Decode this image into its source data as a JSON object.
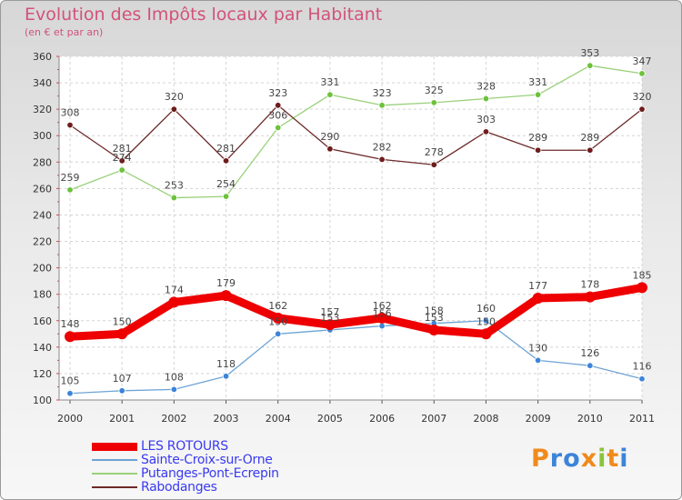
{
  "title": "Evolution des Impôts locaux par Habitant",
  "subtitle": "(en € et par an)",
  "logo": {
    "letters": [
      "P",
      "r",
      "o",
      "x",
      "i",
      "t",
      "i"
    ],
    "colors": [
      "#f08a1c",
      "#3c84d8",
      "#3c84d8",
      "#f08a1c",
      "#8ac43a",
      "#f08a1c",
      "#3c84d8"
    ]
  },
  "chart_data": {
    "type": "line",
    "title": "Evolution des Impôts locaux par Habitant",
    "subtitle": "(en € et par an)",
    "x": [
      "2000",
      "2001",
      "2002",
      "2003",
      "2004",
      "2005",
      "2006",
      "2007",
      "2008",
      "2009",
      "2010",
      "2011"
    ],
    "ylim": [
      100,
      360
    ],
    "yticks": [
      100,
      120,
      140,
      160,
      180,
      200,
      220,
      240,
      260,
      280,
      300,
      320,
      340,
      360
    ],
    "grid": true,
    "legend_position": "bottom-left",
    "series": [
      {
        "name": "LES ROTOURS",
        "color": "#ee0000",
        "point_color": "#ee0000",
        "width": "thick",
        "values": [
          148,
          150,
          174,
          179,
          162,
          157,
          162,
          153,
          150,
          177,
          178,
          185
        ]
      },
      {
        "name": "Sainte-Croix-sur-Orne",
        "color": "#6ea4d4",
        "point_color": "#3c84d8",
        "width": "thin",
        "values": [
          105,
          107,
          108,
          118,
          150,
          153,
          156,
          158,
          160,
          130,
          126,
          116
        ]
      },
      {
        "name": "Putanges-Pont-Ecrepin",
        "color": "#9ad07a",
        "point_color": "#6cc23a",
        "width": "thin",
        "values": [
          259,
          274,
          253,
          254,
          306,
          331,
          323,
          325,
          328,
          331,
          353,
          347
        ]
      },
      {
        "name": "Rabodanges",
        "color": "#6e2a2a",
        "point_color": "#6e1c1c",
        "width": "thin",
        "values": [
          308,
          281,
          320,
          281,
          323,
          290,
          282,
          278,
          303,
          289,
          289,
          320
        ]
      }
    ]
  }
}
